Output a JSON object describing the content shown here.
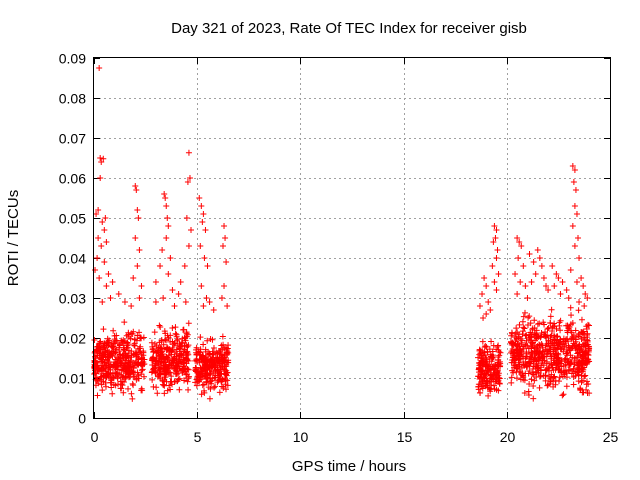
{
  "chart_data": {
    "type": "scatter",
    "title": "Day 321 of 2023, Rate Of TEC Index for receiver gisb",
    "xlabel": "GPS time / hours",
    "ylabel": "ROTI / TECUs",
    "xlim": [
      0,
      25
    ],
    "ylim": [
      0,
      0.09
    ],
    "xticks": [
      0,
      5,
      10,
      15,
      20,
      25
    ],
    "yticks": [
      0,
      0.01,
      0.02,
      0.03,
      0.04,
      0.05,
      0.06,
      0.07,
      0.08,
      0.09
    ],
    "grid": true,
    "marker": "plus",
    "color": "#ff0000",
    "dense_ranges": [
      {
        "x_start": 0.0,
        "x_end": 2.45,
        "y_min": 0.004,
        "y_max": 0.025
      },
      {
        "x_start": 2.8,
        "x_end": 4.6,
        "y_min": 0.004,
        "y_max": 0.025
      },
      {
        "x_start": 4.9,
        "x_end": 6.5,
        "y_min": 0.004,
        "y_max": 0.022
      },
      {
        "x_start": 18.6,
        "x_end": 19.7,
        "y_min": 0.003,
        "y_max": 0.022
      },
      {
        "x_start": 20.2,
        "x_end": 24.0,
        "y_min": 0.004,
        "y_max": 0.028
      }
    ],
    "points": [
      [
        0.25,
        0.0875
      ],
      [
        0.3,
        0.065
      ],
      [
        0.45,
        0.0648
      ],
      [
        0.35,
        0.064
      ],
      [
        0.3,
        0.06
      ],
      [
        0.2,
        0.052
      ],
      [
        0.1,
        0.051
      ],
      [
        0.55,
        0.05
      ],
      [
        0.4,
        0.049
      ],
      [
        0.5,
        0.047
      ],
      [
        0.2,
        0.045
      ],
      [
        0.6,
        0.044
      ],
      [
        0.35,
        0.043
      ],
      [
        0.15,
        0.04
      ],
      [
        0.5,
        0.039
      ],
      [
        0.05,
        0.037
      ],
      [
        0.7,
        0.036
      ],
      [
        0.25,
        0.035
      ],
      [
        0.9,
        0.034
      ],
      [
        0.6,
        0.033
      ],
      [
        1.2,
        0.031
      ],
      [
        0.8,
        0.03
      ],
      [
        1.5,
        0.029
      ],
      [
        0.4,
        0.029
      ],
      [
        1.8,
        0.028
      ],
      [
        2.0,
        0.058
      ],
      [
        2.05,
        0.057
      ],
      [
        2.1,
        0.052
      ],
      [
        2.15,
        0.05
      ],
      [
        2.0,
        0.045
      ],
      [
        2.2,
        0.042
      ],
      [
        2.1,
        0.038
      ],
      [
        1.9,
        0.035
      ],
      [
        2.3,
        0.033
      ],
      [
        2.2,
        0.03
      ],
      [
        3.4,
        0.056
      ],
      [
        3.45,
        0.055
      ],
      [
        3.5,
        0.053
      ],
      [
        3.55,
        0.05
      ],
      [
        3.6,
        0.048
      ],
      [
        3.5,
        0.045
      ],
      [
        3.3,
        0.042
      ],
      [
        3.7,
        0.04
      ],
      [
        3.2,
        0.038
      ],
      [
        3.6,
        0.036
      ],
      [
        3.0,
        0.034
      ],
      [
        3.8,
        0.032
      ],
      [
        3.35,
        0.03
      ],
      [
        3.0,
        0.029
      ],
      [
        3.9,
        0.028
      ],
      [
        4.6,
        0.0663
      ],
      [
        4.65,
        0.06
      ],
      [
        4.55,
        0.059
      ],
      [
        4.5,
        0.05
      ],
      [
        4.7,
        0.047
      ],
      [
        4.6,
        0.043
      ],
      [
        4.4,
        0.038
      ],
      [
        4.2,
        0.034
      ],
      [
        4.1,
        0.031
      ],
      [
        4.45,
        0.029
      ],
      [
        5.1,
        0.055
      ],
      [
        5.2,
        0.053
      ],
      [
        5.3,
        0.051
      ],
      [
        5.25,
        0.049
      ],
      [
        5.4,
        0.047
      ],
      [
        5.15,
        0.043
      ],
      [
        5.35,
        0.04
      ],
      [
        5.5,
        0.038
      ],
      [
        5.2,
        0.033
      ],
      [
        5.45,
        0.03
      ],
      [
        5.6,
        0.029
      ],
      [
        5.3,
        0.028
      ],
      [
        6.3,
        0.048
      ],
      [
        6.35,
        0.045
      ],
      [
        6.25,
        0.043
      ],
      [
        6.4,
        0.039
      ],
      [
        6.3,
        0.033
      ],
      [
        6.2,
        0.03
      ],
      [
        6.45,
        0.028
      ],
      [
        5.8,
        0.027
      ],
      [
        18.9,
        0.035
      ],
      [
        19.0,
        0.033
      ],
      [
        18.8,
        0.031
      ],
      [
        19.1,
        0.029
      ],
      [
        18.7,
        0.028
      ],
      [
        19.2,
        0.027
      ],
      [
        19.0,
        0.026
      ],
      [
        18.85,
        0.025
      ],
      [
        19.4,
        0.048
      ],
      [
        19.5,
        0.047
      ],
      [
        19.45,
        0.045
      ],
      [
        19.35,
        0.044
      ],
      [
        19.55,
        0.042
      ],
      [
        19.5,
        0.04
      ],
      [
        19.3,
        0.038
      ],
      [
        19.6,
        0.036
      ],
      [
        19.4,
        0.034
      ],
      [
        19.5,
        0.032
      ],
      [
        20.5,
        0.045
      ],
      [
        20.6,
        0.044
      ],
      [
        20.7,
        0.043
      ],
      [
        20.55,
        0.04
      ],
      [
        20.8,
        0.038
      ],
      [
        20.4,
        0.036
      ],
      [
        20.65,
        0.034
      ],
      [
        20.9,
        0.033
      ],
      [
        20.5,
        0.031
      ],
      [
        21.0,
        0.03
      ],
      [
        21.1,
        0.041
      ],
      [
        21.3,
        0.039
      ],
      [
        21.5,
        0.042
      ],
      [
        21.6,
        0.04
      ],
      [
        21.7,
        0.038
      ],
      [
        21.4,
        0.036
      ],
      [
        21.8,
        0.035
      ],
      [
        21.2,
        0.034
      ],
      [
        21.9,
        0.033
      ],
      [
        22.0,
        0.032
      ],
      [
        22.2,
        0.038
      ],
      [
        22.4,
        0.036
      ],
      [
        22.5,
        0.035
      ],
      [
        22.7,
        0.034
      ],
      [
        22.3,
        0.033
      ],
      [
        22.9,
        0.032
      ],
      [
        22.6,
        0.031
      ],
      [
        23.0,
        0.03
      ],
      [
        23.2,
        0.063
      ],
      [
        23.3,
        0.062
      ],
      [
        23.25,
        0.059
      ],
      [
        23.35,
        0.057
      ],
      [
        23.3,
        0.053
      ],
      [
        23.4,
        0.051
      ],
      [
        23.2,
        0.048
      ],
      [
        23.45,
        0.045
      ],
      [
        23.3,
        0.043
      ],
      [
        23.5,
        0.04
      ],
      [
        23.1,
        0.037
      ],
      [
        23.6,
        0.035
      ],
      [
        23.4,
        0.034
      ],
      [
        23.7,
        0.033
      ],
      [
        23.8,
        0.031
      ],
      [
        23.9,
        0.03
      ],
      [
        23.5,
        0.029
      ],
      [
        23.75,
        0.028
      ]
    ]
  }
}
